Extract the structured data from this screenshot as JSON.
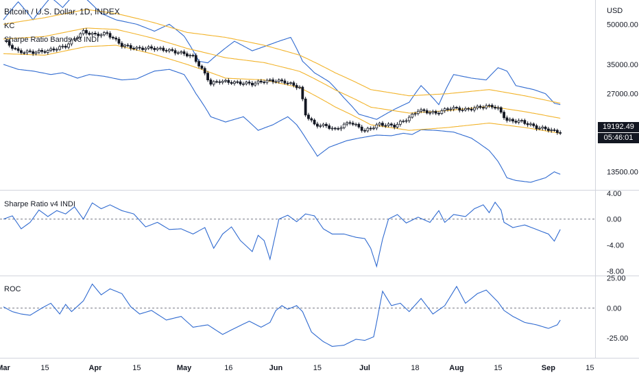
{
  "title": "Bitcoin / U.S. Dollar, 1D, INDEX",
  "currency": "USD",
  "overlays": [
    "KC",
    "Sharpe Ratio Bands v3 INDI"
  ],
  "last_price": "19192.49",
  "countdown": "05:46:01",
  "colors": {
    "band": "#2f6ad0",
    "orange": "#f2b32a",
    "line": "#2f6ad0",
    "candle": "#131722",
    "grid": "#e0e3eb"
  },
  "x_labels": [
    {
      "t": "Mar",
      "d": 0,
      "bold": true
    },
    {
      "t": "15",
      "d": 14
    },
    {
      "t": "Apr",
      "d": 31,
      "bold": true
    },
    {
      "t": "15",
      "d": 45
    },
    {
      "t": "May",
      "d": 61,
      "bold": true
    },
    {
      "t": "16",
      "d": 76
    },
    {
      "t": "Jun",
      "d": 92,
      "bold": true
    },
    {
      "t": "15",
      "d": 106
    },
    {
      "t": "Jul",
      "d": 122,
      "bold": true
    },
    {
      "t": "18",
      "d": 139
    },
    {
      "t": "Aug",
      "d": 153,
      "bold": true
    },
    {
      "t": "15",
      "d": 167
    },
    {
      "t": "Sep",
      "d": 184,
      "bold": true
    },
    {
      "t": "15",
      "d": 198
    }
  ],
  "chart_data": [
    {
      "type": "candlestick",
      "title": "Bitcoin / U.S. Dollar, 1D, INDEX",
      "y_ticks": [
        13500,
        27000,
        35000,
        50000
      ],
      "y_tick_labels": [
        "13500.00",
        "27000.00",
        "35000.00",
        "50000.00"
      ],
      "ylim": [
        11500,
        62000
      ],
      "log_scale": true,
      "x_days_from": "Mar 1",
      "price_anchors": [
        [
          0,
          43200
        ],
        [
          5,
          39200
        ],
        [
          10,
          39000
        ],
        [
          15,
          39500
        ],
        [
          21,
          41200
        ],
        [
          27,
          46800
        ],
        [
          31,
          45500
        ],
        [
          35,
          46000
        ],
        [
          40,
          41500
        ],
        [
          45,
          40300
        ],
        [
          50,
          40500
        ],
        [
          55,
          39800
        ],
        [
          61,
          38500
        ],
        [
          64,
          37500
        ],
        [
          67,
          33500
        ],
        [
          70,
          29500
        ],
        [
          73,
          30200
        ],
        [
          78,
          29800
        ],
        [
          84,
          29500
        ],
        [
          88,
          30200
        ],
        [
          92,
          30300
        ],
        [
          95,
          30000
        ],
        [
          100,
          28500
        ],
        [
          102,
          22500
        ],
        [
          105,
          20500
        ],
        [
          109,
          20300
        ],
        [
          112,
          19600
        ],
        [
          117,
          21000
        ],
        [
          122,
          19400
        ],
        [
          127,
          20600
        ],
        [
          132,
          20300
        ],
        [
          137,
          21800
        ],
        [
          140,
          23300
        ],
        [
          146,
          22700
        ],
        [
          151,
          23800
        ],
        [
          156,
          23400
        ],
        [
          161,
          24000
        ],
        [
          165,
          24200
        ],
        [
          167,
          23600
        ],
        [
          170,
          21300
        ],
        [
          175,
          21100
        ],
        [
          180,
          20000
        ],
        [
          184,
          19700
        ],
        [
          186,
          19300
        ],
        [
          188,
          19200
        ]
      ],
      "keltner_upper_anchors": [
        [
          0,
          50000
        ],
        [
          14,
          53000
        ],
        [
          28,
          57000
        ],
        [
          38,
          55000
        ],
        [
          50,
          51000
        ],
        [
          62,
          46500
        ],
        [
          75,
          44500
        ],
        [
          88,
          41500
        ],
        [
          100,
          38000
        ],
        [
          112,
          32500
        ],
        [
          124,
          28000
        ],
        [
          137,
          26500
        ],
        [
          150,
          27000
        ],
        [
          164,
          28000
        ],
        [
          176,
          26500
        ],
        [
          188,
          24800
        ]
      ],
      "keltner_lower_anchors": [
        [
          0,
          38500
        ],
        [
          14,
          38000
        ],
        [
          28,
          41000
        ],
        [
          38,
          41500
        ],
        [
          50,
          38500
        ],
        [
          62,
          35000
        ],
        [
          75,
          31000
        ],
        [
          88,
          30500
        ],
        [
          100,
          28500
        ],
        [
          112,
          24000
        ],
        [
          124,
          20500
        ],
        [
          137,
          19500
        ],
        [
          150,
          20000
        ],
        [
          164,
          20800
        ],
        [
          176,
          20000
        ],
        [
          188,
          19000
        ]
      ],
      "sharpe_upper_anchors": [
        [
          0,
          52000
        ],
        [
          5,
          61000
        ],
        [
          10,
          52000
        ],
        [
          16,
          63500
        ],
        [
          20,
          58000
        ],
        [
          25,
          67000
        ],
        [
          29,
          61000
        ],
        [
          33,
          55000
        ],
        [
          38,
          52000
        ],
        [
          45,
          50000
        ],
        [
          51,
          47000
        ],
        [
          56,
          50000
        ],
        [
          61,
          45000
        ],
        [
          66,
          36000
        ],
        [
          69,
          35500
        ],
        [
          72,
          38000
        ],
        [
          78,
          43000
        ],
        [
          84,
          39500
        ],
        [
          88,
          41000
        ],
        [
          93,
          43000
        ],
        [
          97,
          44500
        ],
        [
          101,
          36000
        ],
        [
          105,
          32500
        ],
        [
          110,
          30000
        ],
        [
          115,
          26000
        ],
        [
          120,
          22500
        ],
        [
          126,
          21500
        ],
        [
          132,
          23500
        ],
        [
          137,
          25000
        ],
        [
          141,
          29000
        ],
        [
          147,
          24500
        ],
        [
          152,
          32000
        ],
        [
          158,
          31000
        ],
        [
          163,
          30500
        ],
        [
          167,
          34000
        ],
        [
          170,
          33000
        ],
        [
          173,
          29000
        ],
        [
          179,
          28000
        ],
        [
          183,
          27000
        ],
        [
          186,
          24800
        ],
        [
          188,
          24500
        ]
      ],
      "sharpe_lower_anchors": [
        [
          0,
          35000
        ],
        [
          5,
          33500
        ],
        [
          10,
          33000
        ],
        [
          16,
          32000
        ],
        [
          20,
          32500
        ],
        [
          25,
          31000
        ],
        [
          29,
          32000
        ],
        [
          34,
          31500
        ],
        [
          40,
          30500
        ],
        [
          45,
          30800
        ],
        [
          51,
          33000
        ],
        [
          56,
          33500
        ],
        [
          61,
          32000
        ],
        [
          65,
          27000
        ],
        [
          70,
          22000
        ],
        [
          75,
          21000
        ],
        [
          81,
          22000
        ],
        [
          86,
          19500
        ],
        [
          91,
          20500
        ],
        [
          96,
          22000
        ],
        [
          99,
          20500
        ],
        [
          103,
          17500
        ],
        [
          106,
          15500
        ],
        [
          110,
          16800
        ],
        [
          116,
          17800
        ],
        [
          120,
          18200
        ],
        [
          126,
          18700
        ],
        [
          131,
          18600
        ],
        [
          135,
          19000
        ],
        [
          138,
          18800
        ],
        [
          141,
          19600
        ],
        [
          146,
          19500
        ],
        [
          152,
          19200
        ],
        [
          158,
          18200
        ],
        [
          164,
          16300
        ],
        [
          167,
          14800
        ],
        [
          170,
          12800
        ],
        [
          173,
          12500
        ],
        [
          178,
          12300
        ],
        [
          183,
          12800
        ],
        [
          186,
          13500
        ],
        [
          188,
          13200
        ]
      ]
    },
    {
      "type": "line",
      "title": "Sharpe Ratio v4 INDI",
      "y_ticks": [
        4,
        0,
        -4,
        -8
      ],
      "y_tick_labels": [
        "4.00",
        "0.00",
        "-4.00",
        "-8.00"
      ],
      "ylim": [
        -8.7,
        4.4
      ],
      "reference_line": 0,
      "anchors": [
        [
          0,
          0
        ],
        [
          3,
          0.5
        ],
        [
          6,
          -1.5
        ],
        [
          9,
          -0.5
        ],
        [
          12,
          1.4
        ],
        [
          15,
          0.4
        ],
        [
          18,
          1.3
        ],
        [
          21,
          0.8
        ],
        [
          24,
          1.9
        ],
        [
          27,
          0
        ],
        [
          30,
          2.5
        ],
        [
          33,
          1.6
        ],
        [
          36,
          2.2
        ],
        [
          40,
          1.3
        ],
        [
          44,
          0.8
        ],
        [
          48,
          -1.2
        ],
        [
          52,
          -0.5
        ],
        [
          56,
          -1.6
        ],
        [
          60,
          -1.5
        ],
        [
          64,
          -2.3
        ],
        [
          68,
          -1.3
        ],
        [
          71,
          -4.5
        ],
        [
          74,
          -2.3
        ],
        [
          77,
          -1.2
        ],
        [
          80,
          -3.3
        ],
        [
          84,
          -5
        ],
        [
          86,
          -2.5
        ],
        [
          88,
          -3.3
        ],
        [
          90,
          -6.2
        ],
        [
          93,
          0
        ],
        [
          96,
          0.6
        ],
        [
          99,
          -0.4
        ],
        [
          102,
          0.8
        ],
        [
          105,
          0.5
        ],
        [
          108,
          -1.5
        ],
        [
          111,
          -2.3
        ],
        [
          115,
          -2.3
        ],
        [
          119,
          -2.8
        ],
        [
          122,
          -3
        ],
        [
          124,
          -4.5
        ],
        [
          126,
          -7.3
        ],
        [
          128,
          -3.1
        ],
        [
          130,
          0
        ],
        [
          133,
          0.7
        ],
        [
          136,
          -0.6
        ],
        [
          140,
          0.3
        ],
        [
          144,
          -0.5
        ],
        [
          147,
          1.3
        ],
        [
          149,
          -0.5
        ],
        [
          152,
          0.7
        ],
        [
          156,
          0.4
        ],
        [
          159,
          1.6
        ],
        [
          162,
          2.2
        ],
        [
          164,
          1
        ],
        [
          166,
          2.6
        ],
        [
          168,
          1.4
        ],
        [
          169,
          -0.5
        ],
        [
          172,
          -1.3
        ],
        [
          176,
          -0.9
        ],
        [
          180,
          -1.6
        ],
        [
          184,
          -2.3
        ],
        [
          186,
          -3.4
        ],
        [
          188,
          -1.6
        ]
      ]
    },
    {
      "type": "line",
      "title": "ROC",
      "y_ticks": [
        25,
        0,
        -25
      ],
      "y_tick_labels": [
        "25.00",
        "0.00",
        "-25.00"
      ],
      "ylim": [
        -41.5,
        26.5
      ],
      "reference_line": 0,
      "anchors": [
        [
          0,
          1
        ],
        [
          3,
          -3
        ],
        [
          6,
          -5
        ],
        [
          9,
          -6
        ],
        [
          13,
          0
        ],
        [
          16,
          4
        ],
        [
          19,
          -5
        ],
        [
          21,
          3
        ],
        [
          23,
          -3
        ],
        [
          27,
          6
        ],
        [
          30,
          20
        ],
        [
          33,
          11
        ],
        [
          36,
          16
        ],
        [
          40,
          12
        ],
        [
          43,
          1
        ],
        [
          46,
          -5
        ],
        [
          50,
          -2
        ],
        [
          55,
          -10
        ],
        [
          60,
          -7
        ],
        [
          64,
          -16
        ],
        [
          69,
          -14
        ],
        [
          74,
          -22
        ],
        [
          78,
          -17
        ],
        [
          83,
          -11
        ],
        [
          87,
          -16
        ],
        [
          90,
          -12
        ],
        [
          92,
          -2
        ],
        [
          94,
          2
        ],
        [
          96,
          -1
        ],
        [
          99,
          2
        ],
        [
          101,
          -3
        ],
        [
          104,
          -20
        ],
        [
          108,
          -28
        ],
        [
          111,
          -32
        ],
        [
          115,
          -31
        ],
        [
          119,
          -26
        ],
        [
          122,
          -27
        ],
        [
          125,
          -24
        ],
        [
          126,
          -12
        ],
        [
          128,
          14
        ],
        [
          131,
          2
        ],
        [
          134,
          4
        ],
        [
          137,
          -3
        ],
        [
          141,
          8
        ],
        [
          145,
          -5
        ],
        [
          149,
          2
        ],
        [
          153,
          18
        ],
        [
          156,
          4
        ],
        [
          160,
          12
        ],
        [
          163,
          15
        ],
        [
          167,
          5
        ],
        [
          169,
          -2
        ],
        [
          172,
          -7
        ],
        [
          176,
          -12
        ],
        [
          180,
          -14
        ],
        [
          184,
          -17
        ],
        [
          187,
          -14
        ],
        [
          188,
          -10
        ]
      ]
    }
  ]
}
